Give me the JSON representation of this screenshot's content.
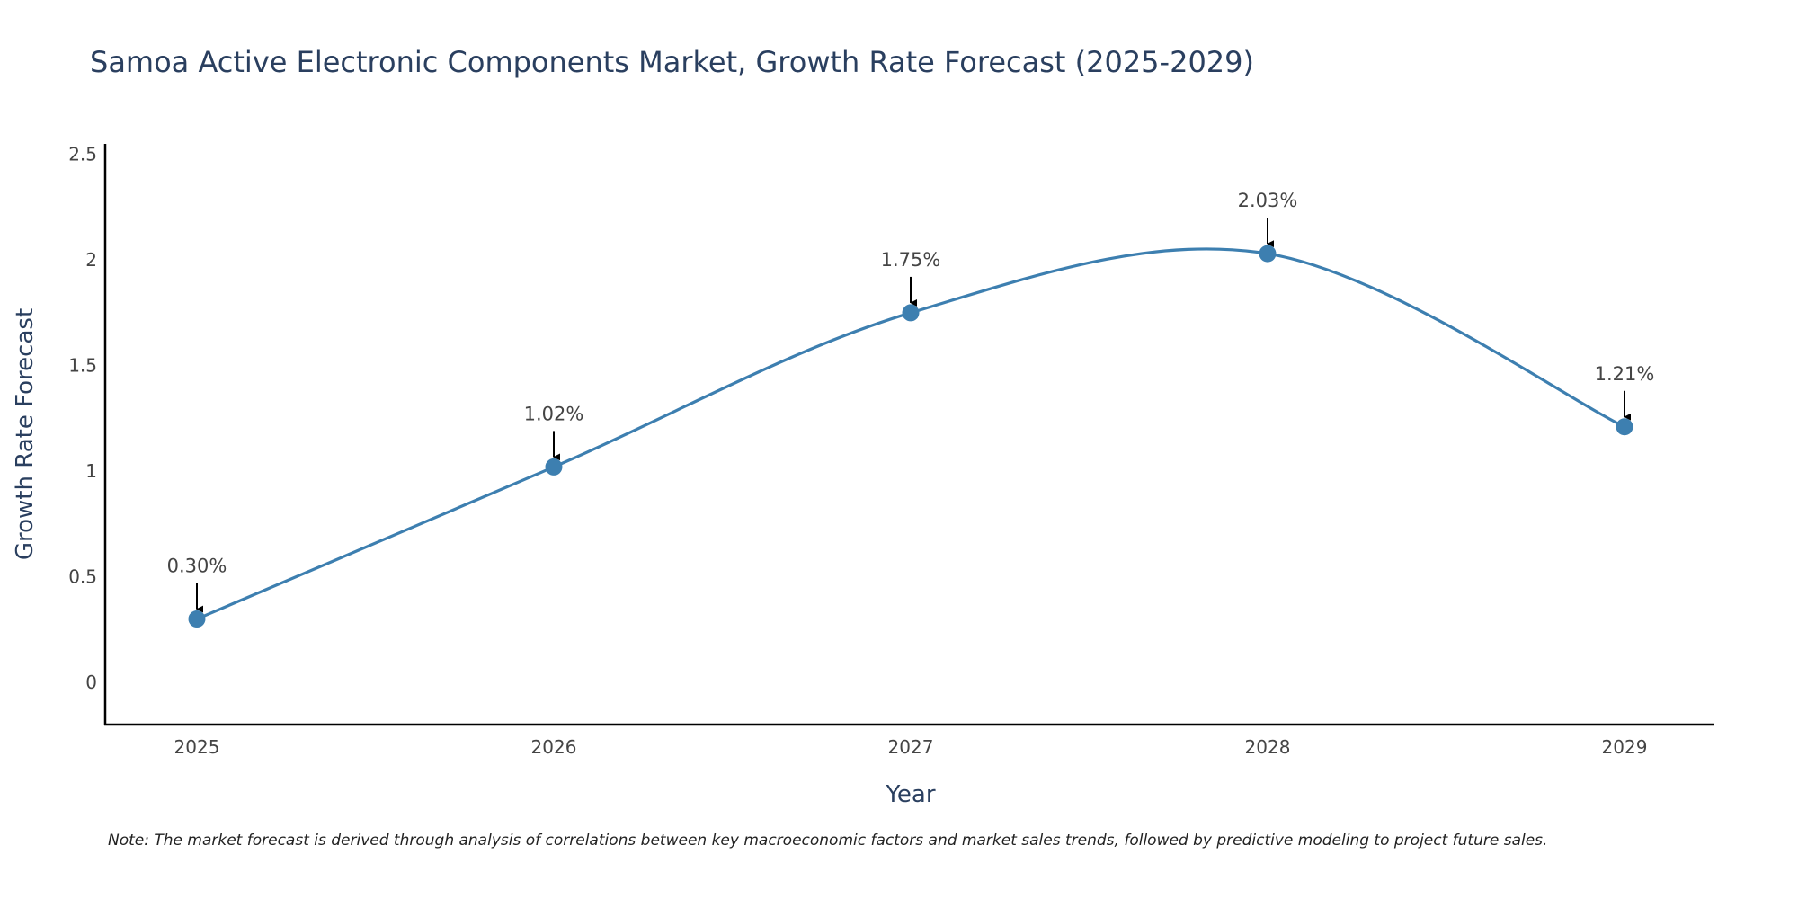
{
  "chart_data": {
    "type": "line",
    "title": "Samoa Active Electronic Components Market, Growth Rate Forecast (2025-2029)",
    "xlabel": "Year",
    "ylabel": "Growth Rate Forecast",
    "categories": [
      "2025",
      "2026",
      "2027",
      "2028",
      "2029"
    ],
    "values": [
      0.3,
      1.02,
      1.75,
      2.03,
      1.21
    ],
    "data_labels": [
      "0.30%",
      "1.02%",
      "1.75%",
      "2.03%",
      "1.21%"
    ],
    "yticks": [
      0,
      0.5,
      1,
      1.5,
      2,
      2.5
    ],
    "ytick_labels": [
      "0",
      "0.5",
      "1",
      "1.5",
      "2",
      "2.5"
    ],
    "ylim": [
      -0.2,
      2.55
    ],
    "line_shape": "spline",
    "line_color": "#3d7fb0",
    "marker_color": "#3d7fb0",
    "annotation_arrow_color": "#000000",
    "grid": false,
    "note": "Note: The market forecast is derived through analysis of correlations between key macroeconomic factors and market sales trends, followed by predictive modeling to project future sales."
  }
}
